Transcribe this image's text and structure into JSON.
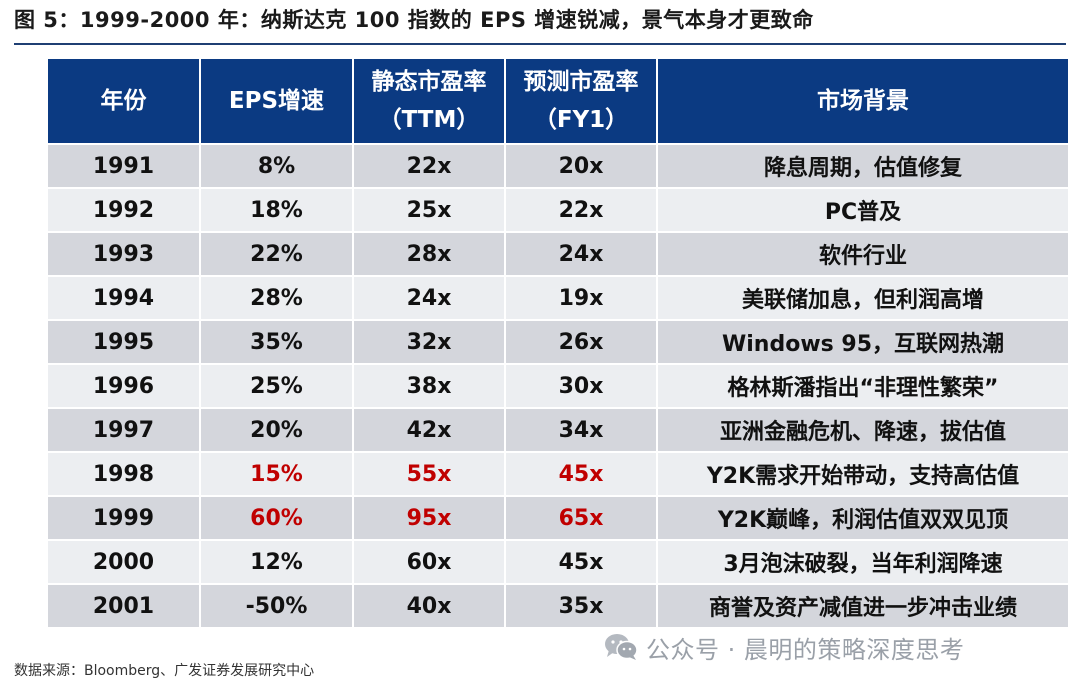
{
  "figure": {
    "title": "图 5：1999-2000 年：纳斯达克 100 指数的 EPS 增速锐减，景气本身才更致命",
    "source": "数据来源：Bloomberg、广发证券发展研究中心"
  },
  "table": {
    "headers": [
      {
        "line1": "年份",
        "line2": ""
      },
      {
        "line1": "EPS增速",
        "line2": ""
      },
      {
        "line1": "静态市盈率",
        "line2": "（TTM）"
      },
      {
        "line1": "预测市盈率",
        "line2": "（FY1）"
      },
      {
        "line1": "市场背景",
        "line2": ""
      }
    ],
    "rows": [
      {
        "year": "1991",
        "eps": "8%",
        "pe_ttm": "22x",
        "pe_fy1": "20x",
        "background": "降息周期，估值修复",
        "highlight": false
      },
      {
        "year": "1992",
        "eps": "18%",
        "pe_ttm": "25x",
        "pe_fy1": "22x",
        "background": "PC普及",
        "highlight": false
      },
      {
        "year": "1993",
        "eps": "22%",
        "pe_ttm": "28x",
        "pe_fy1": "24x",
        "background": "软件行业",
        "highlight": false
      },
      {
        "year": "1994",
        "eps": "28%",
        "pe_ttm": "24x",
        "pe_fy1": "19x",
        "background": "美联储加息，但利润高增",
        "highlight": false
      },
      {
        "year": "1995",
        "eps": "35%",
        "pe_ttm": "32x",
        "pe_fy1": "26x",
        "background": "Windows 95，互联网热潮",
        "highlight": false
      },
      {
        "year": "1996",
        "eps": "25%",
        "pe_ttm": "38x",
        "pe_fy1": "30x",
        "background": "格林斯潘指出“非理性繁荣”",
        "highlight": false
      },
      {
        "year": "1997",
        "eps": "20%",
        "pe_ttm": "42x",
        "pe_fy1": "34x",
        "background": "亚洲金融危机、降速，拔估值",
        "highlight": false
      },
      {
        "year": "1998",
        "eps": "15%",
        "pe_ttm": "55x",
        "pe_fy1": "45x",
        "background": "Y2K需求开始带动，支持高估值",
        "highlight": true
      },
      {
        "year": "1999",
        "eps": "60%",
        "pe_ttm": "95x",
        "pe_fy1": "65x",
        "background": "Y2K巅峰，利润估值双双见顶",
        "highlight": true
      },
      {
        "year": "2000",
        "eps": "12%",
        "pe_ttm": "60x",
        "pe_fy1": "45x",
        "background": "3月泡沫破裂，当年利润降速",
        "highlight": false
      },
      {
        "year": "2001",
        "eps": "-50%",
        "pe_ttm": "40x",
        "pe_fy1": "35x",
        "background": "商誉及资产减值进一步冲击业绩",
        "highlight": false
      }
    ]
  },
  "watermark": {
    "text": "公众号 · 晨明的策略深度思考",
    "icon": "wechat-icon"
  },
  "colors": {
    "header_bg": "#0b3a82",
    "row_dark": "#d4d6dc",
    "row_light": "#eceef1",
    "highlight_text": "#c00000"
  }
}
